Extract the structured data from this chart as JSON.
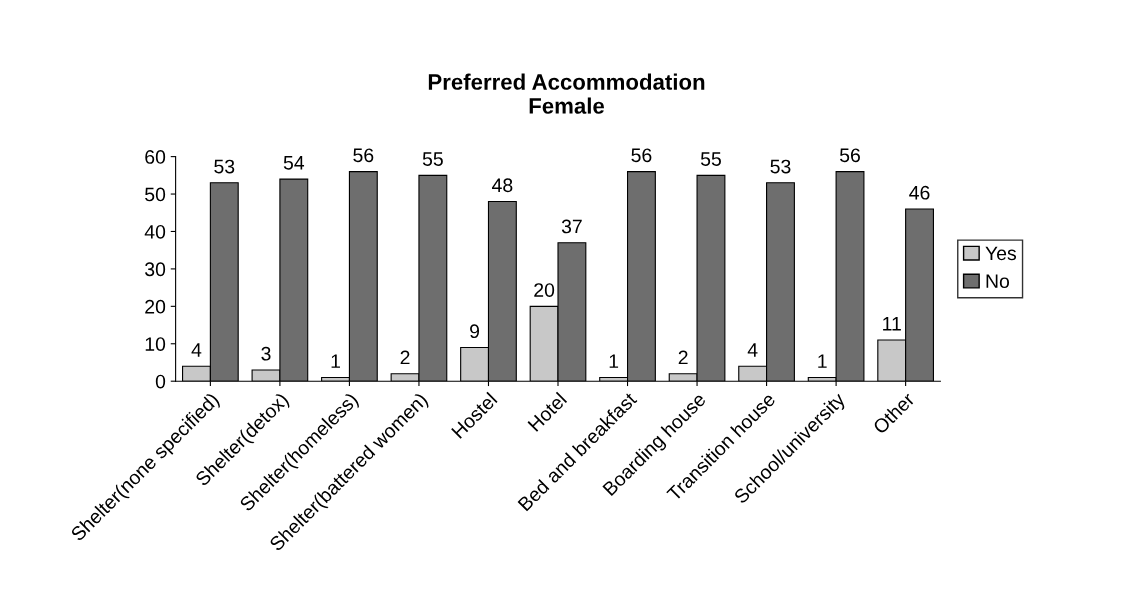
{
  "chart_data": {
    "type": "bar",
    "title": "Preferred Accommodation",
    "subtitle": "Female",
    "categories": [
      "Shelter(none specified)",
      "Shelter(detox)",
      "Shelter(homeless)",
      "Shelter(battered women)",
      "Hostel",
      "Hotel",
      "Bed and breakfast",
      "Boarding house",
      "Transition house",
      "School/university",
      "Other"
    ],
    "series": [
      {
        "name": "Yes",
        "color": "#c8c8c8",
        "values": [
          4,
          3,
          1,
          2,
          9,
          20,
          1,
          2,
          4,
          1,
          11
        ]
      },
      {
        "name": "No",
        "color": "#6e6e6e",
        "values": [
          53,
          54,
          56,
          55,
          48,
          37,
          56,
          55,
          53,
          56,
          46
        ]
      }
    ],
    "ylim": [
      0,
      60
    ],
    "yticks": [
      0,
      10,
      20,
      30,
      40,
      50,
      60
    ],
    "data_labels": true,
    "grid": false,
    "legend": "right"
  }
}
